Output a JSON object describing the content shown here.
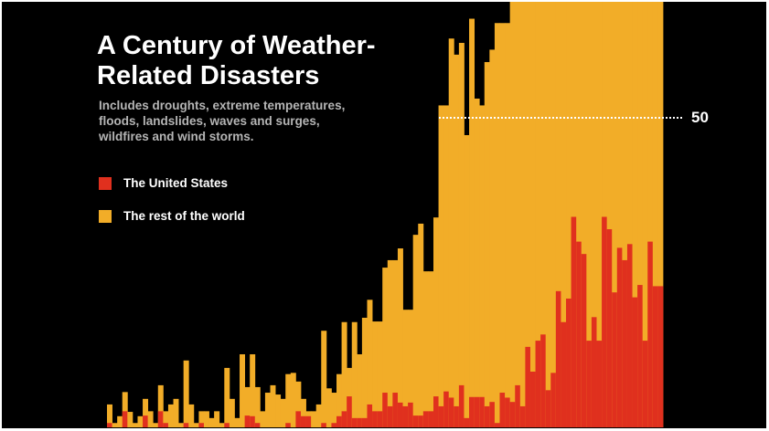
{
  "chart_data": {
    "type": "bar",
    "stacked": true,
    "title": "A Century of Weather-Related Disasters",
    "subtitle": "Includes droughts, extreme temperatures, floods, landslides, waves and surges, wildfires and wind storms.",
    "reference_line": {
      "value": 50,
      "label": "50"
    },
    "ylim": [
      0,
      69
    ],
    "note": "us = United States count per year; total = US + rest of world; last bars exceed visible top",
    "colors": {
      "us": "#e0301e",
      "rest_of_world": "#f2ad28",
      "background": "#000000"
    },
    "legend": [
      {
        "label": "The United States",
        "color": "#e0301e"
      },
      {
        "label": "The rest of the world",
        "color": "#f2ad28"
      }
    ],
    "us": [
      0.7,
      0,
      0,
      2.6,
      0,
      0,
      0,
      1.9,
      0,
      0,
      2.6,
      0.7,
      0,
      0,
      0,
      0.7,
      0,
      0,
      0.7,
      0,
      0,
      0,
      0,
      0.7,
      0,
      0,
      0,
      1.9,
      1.8,
      0.7,
      0,
      0,
      0,
      0,
      0,
      0.7,
      0,
      2.6,
      1.8,
      1.8,
      0,
      0,
      0.7,
      0,
      0.7,
      1.8,
      2.6,
      5,
      1.5,
      1.5,
      1.5,
      3.7,
      2.6,
      2.6,
      5.6,
      3.4,
      5.6,
      4,
      3.4,
      4,
      1.9,
      1.9,
      2.6,
      2.6,
      5,
      3.4,
      5.8,
      4.8,
      3.4,
      6.8,
      1.5,
      4.9,
      4.9,
      4.9,
      3.4,
      4.1,
      0.7,
      5.6,
      4.8,
      4.1,
      6.8,
      3.4,
      13,
      9,
      14,
      15,
      6,
      8.8,
      22,
      17,
      20.8,
      34,
      30,
      28,
      14,
      17.8,
      14,
      34,
      32,
      21.8,
      29,
      27,
      29.6,
      21,
      23,
      14,
      30,
      22.8,
      22.8
    ],
    "total": [
      3.7,
      0.7,
      1.8,
      5.7,
      2.5,
      0.7,
      1.8,
      4.6,
      2.6,
      0.7,
      6.8,
      2.6,
      3.7,
      4.6,
      0.7,
      10.8,
      3.7,
      0.7,
      2.6,
      2.6,
      1.5,
      2.6,
      0.7,
      9.6,
      4.6,
      1.5,
      11.8,
      6.5,
      11.8,
      6.5,
      2.6,
      5.6,
      6.8,
      5.3,
      4.6,
      8.6,
      8.8,
      7.4,
      4.6,
      2.6,
      2.6,
      3.7,
      15.6,
      6.3,
      5.6,
      8.6,
      17,
      9.6,
      17,
      11.8,
      17.7,
      20.6,
      17.1,
      17.1,
      25.8,
      27,
      27,
      28.9,
      19,
      19,
      31.1,
      32.9,
      25.2,
      25.2,
      33.9,
      52,
      52,
      62.8,
      60.2,
      62.1,
      47.2,
      66,
      53.1,
      52,
      59,
      61,
      65.3,
      65.3,
      65.3,
      80,
      80,
      80,
      80,
      80,
      80,
      80,
      80,
      80,
      80,
      80,
      80,
      80,
      80,
      80,
      80,
      80,
      80,
      80,
      80,
      80,
      80,
      80,
      80,
      80,
      80,
      80,
      80,
      80,
      80
    ]
  }
}
